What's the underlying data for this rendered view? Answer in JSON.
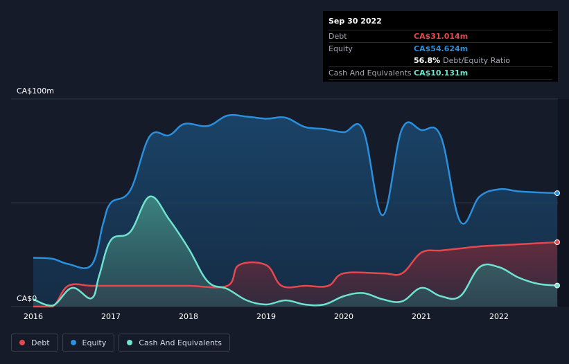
{
  "tooltip": {
    "date": "Sep 30 2022",
    "debt_label": "Debt",
    "debt_value": "CA$31.014m",
    "equity_label": "Equity",
    "equity_value": "CA$54.624m",
    "ratio_value": "56.8%",
    "ratio_label": "Debt/Equity Ratio",
    "cash_label": "Cash And Equivalents",
    "cash_value": "CA$10.131m"
  },
  "legend": [
    {
      "label": "Debt",
      "color": "#e5484d"
    },
    {
      "label": "Equity",
      "color": "#2a8fdc"
    },
    {
      "label": "Cash And Equivalents",
      "color": "#6fe3cf"
    }
  ],
  "chart_data": {
    "type": "area",
    "ylim": [
      0,
      100
    ],
    "y_tick_labels": [
      {
        "value": 100,
        "label": "CA$100m"
      },
      {
        "value": 0,
        "label": "CA$0"
      }
    ],
    "x_tick_labels": [
      "2016",
      "2017",
      "2018",
      "2019",
      "2020",
      "2021",
      "2022"
    ],
    "xlim": [
      2016.0,
      2022.75
    ],
    "series": [
      {
        "name": "Equity",
        "color": "#2a8fdc",
        "x": [
          2016.0,
          2016.25,
          2016.45,
          2016.75,
          2016.9,
          2017.0,
          2017.25,
          2017.5,
          2017.75,
          2017.95,
          2018.25,
          2018.5,
          2018.75,
          2019.0,
          2019.25,
          2019.5,
          2019.75,
          2020.0,
          2020.25,
          2020.5,
          2020.75,
          2021.0,
          2021.25,
          2021.5,
          2021.75,
          2022.0,
          2022.25,
          2022.5,
          2022.75
        ],
        "values": [
          23.5,
          23.0,
          20.5,
          20.0,
          40.0,
          50.0,
          56.0,
          82.0,
          82.5,
          88.0,
          87.0,
          92.0,
          91.5,
          90.5,
          91.0,
          86.5,
          85.5,
          84.0,
          85.0,
          44.0,
          85.5,
          85.0,
          82.0,
          41.0,
          53.0,
          56.5,
          55.5,
          55.0,
          54.624
        ]
      },
      {
        "name": "Debt",
        "color": "#e5484d",
        "x": [
          2016.0,
          2016.25,
          2016.45,
          2016.75,
          2017.0,
          2017.5,
          2018.0,
          2018.5,
          2018.65,
          2019.0,
          2019.2,
          2019.5,
          2019.8,
          2020.0,
          2020.5,
          2020.75,
          2021.0,
          2021.25,
          2021.5,
          2021.75,
          2022.0,
          2022.25,
          2022.5,
          2022.75
        ],
        "values": [
          0.0,
          0.0,
          10.0,
          10.0,
          10.0,
          10.0,
          10.0,
          10.0,
          20.0,
          20.0,
          10.0,
          10.0,
          10.0,
          16.0,
          16.0,
          16.0,
          26.0,
          27.0,
          28.0,
          29.0,
          29.5,
          30.0,
          30.5,
          31.014
        ]
      },
      {
        "name": "Cash And Equivalents",
        "color": "#6fe3cf",
        "x": [
          2016.0,
          2016.25,
          2016.5,
          2016.75,
          2016.85,
          2017.0,
          2017.25,
          2017.5,
          2017.75,
          2018.0,
          2018.25,
          2018.5,
          2018.75,
          2019.0,
          2019.25,
          2019.5,
          2019.75,
          2020.0,
          2020.25,
          2020.5,
          2020.75,
          2021.0,
          2021.25,
          2021.5,
          2021.75,
          2022.0,
          2022.25,
          2022.5,
          2022.75
        ],
        "values": [
          3.5,
          0.5,
          9.0,
          4.0,
          15.0,
          32.0,
          36.0,
          53.0,
          42.0,
          28.0,
          12.0,
          8.5,
          3.0,
          1.0,
          3.0,
          1.0,
          1.0,
          5.0,
          6.5,
          3.5,
          2.5,
          9.0,
          5.0,
          5.0,
          19.0,
          19.0,
          14.0,
          11.0,
          10.131
        ]
      }
    ]
  }
}
